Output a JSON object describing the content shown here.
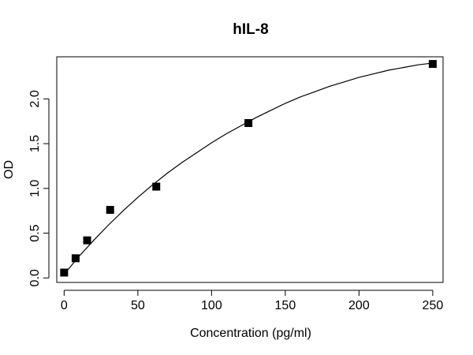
{
  "chart_data": {
    "type": "scatter",
    "title": "hIL-8",
    "xlabel": "Concentration (pg/ml)",
    "ylabel": "OD",
    "xlim": [
      -5,
      257
    ],
    "ylim": [
      -0.05,
      2.47
    ],
    "xticks": [
      0,
      50,
      100,
      150,
      200,
      250
    ],
    "yticks": [
      0.0,
      0.5,
      1.0,
      1.5,
      2.0
    ],
    "xtick_labels": [
      "0",
      "50",
      "100",
      "150",
      "200",
      "250"
    ],
    "ytick_labels": [
      "0.0",
      "0.5",
      "1.0",
      "1.5",
      "2.0"
    ],
    "grid": false,
    "legend": "none",
    "series": [
      {
        "marker": "square",
        "color": "#000000",
        "x": [
          0,
          7.8,
          15.6,
          31.2,
          62.5,
          125,
          250
        ],
        "y": [
          0.06,
          0.22,
          0.42,
          0.76,
          1.02,
          1.73,
          2.39
        ]
      }
    ],
    "fit_curve": {
      "type": "line",
      "color": "#000000",
      "x": [
        0,
        10,
        20,
        30,
        40,
        50,
        60,
        70,
        80,
        90,
        100,
        110,
        120,
        130,
        140,
        150,
        160,
        170,
        180,
        190,
        200,
        210,
        220,
        230,
        240,
        250
      ],
      "y": [
        0.04,
        0.24,
        0.42,
        0.59,
        0.75,
        0.9,
        1.04,
        1.17,
        1.29,
        1.4,
        1.51,
        1.61,
        1.7,
        1.79,
        1.87,
        1.95,
        2.02,
        2.08,
        2.14,
        2.19,
        2.24,
        2.28,
        2.32,
        2.35,
        2.38,
        2.4
      ]
    }
  }
}
